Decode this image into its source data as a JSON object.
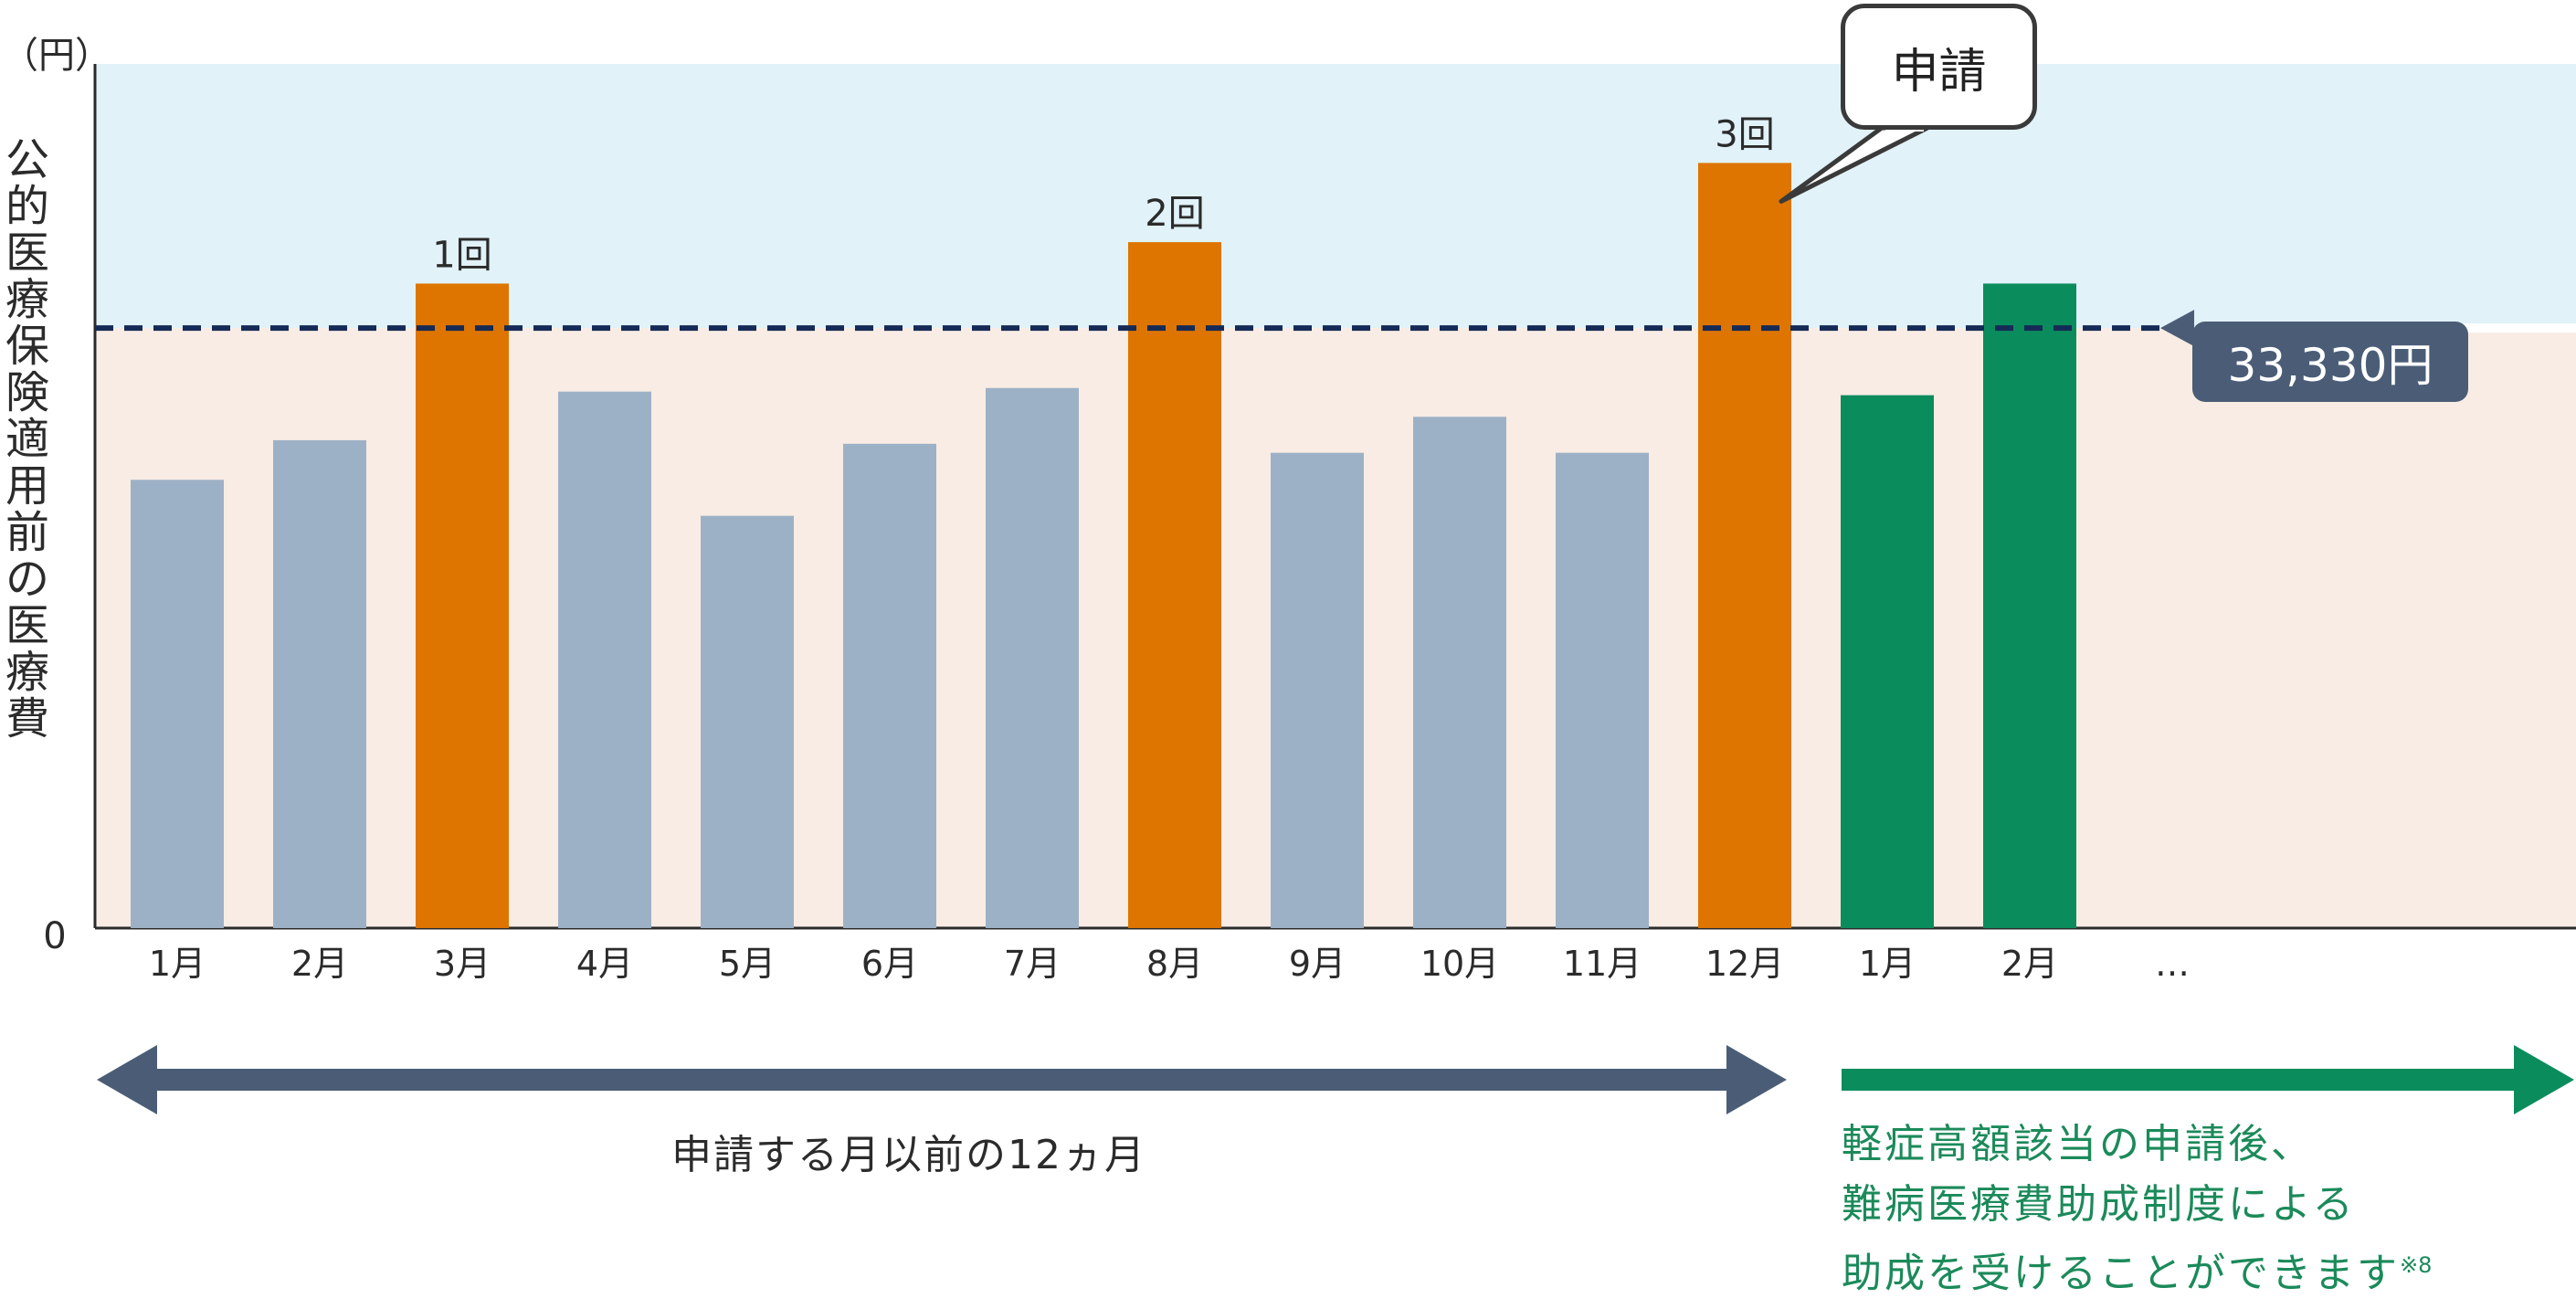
{
  "chart_data": {
    "type": "bar",
    "y_unit_label": "（円）",
    "ylabel_chars": [
      "公",
      "的",
      "医",
      "療",
      "保",
      "険",
      "適",
      "用",
      "前",
      "の",
      "医",
      "療",
      "費"
    ],
    "y_zero_label": "0",
    "ylim": [
      0,
      48000
    ],
    "categories": [
      "1月",
      "2月",
      "3月",
      "4月",
      "5月",
      "6月",
      "7月",
      "8月",
      "9月",
      "10月",
      "11月",
      "12月",
      "1月",
      "2月"
    ],
    "values": [
      24900,
      27100,
      35800,
      29800,
      22900,
      26900,
      30000,
      38100,
      26400,
      28400,
      26400,
      42500,
      29600,
      35800
    ],
    "bar_colors": [
      "#9db1c6",
      "#9db1c6",
      "#dd7500",
      "#9db1c6",
      "#9db1c6",
      "#9db1c6",
      "#9db1c6",
      "#dd7500",
      "#9db1c6",
      "#9db1c6",
      "#9db1c6",
      "#dd7500",
      "#0b8c5c",
      "#0b8c5c"
    ],
    "bar_labels": [
      "",
      "",
      "1回",
      "",
      "",
      "",
      "",
      "2回",
      "",
      "",
      "",
      "3回",
      "",
      ""
    ],
    "continuation_label": "…",
    "threshold": 33330,
    "threshold_label": "33,330円",
    "threshold_color": "#152a56",
    "region_above_color": "#e1f2f9",
    "region_below_color": "#f8ece4",
    "callout_text": "申請",
    "callout_target_index": 11,
    "left_arrow_caption": "申請する月以前の12ヵ月",
    "left_arrow_color": "#4b5d76",
    "right_arrow_color": "#0b8c5c",
    "right_caption_lines": [
      "軽症高額該当の申請後、",
      "難病医療費助成制度による",
      "助成を受けることができます"
    ],
    "right_caption_note": "※8",
    "grid": false
  }
}
